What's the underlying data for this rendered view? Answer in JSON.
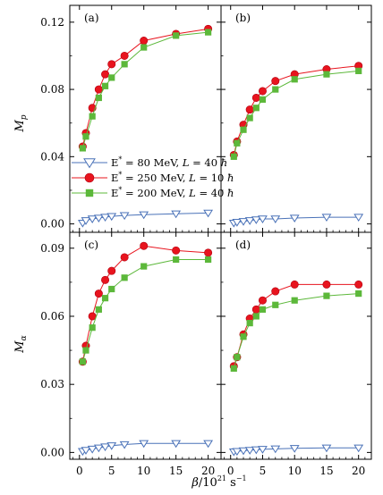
{
  "chart_data": [
    {
      "type": "line",
      "panel": "(a)",
      "ylabel_main": "M",
      "ylabel_sub": "p",
      "ylim": [
        -0.005,
        0.13
      ],
      "yticks": [
        0.0,
        0.04,
        0.08,
        0.12
      ],
      "yticklabels": [
        "0.00",
        "0.04",
        "0.08",
        "0.12"
      ],
      "x": [
        0.5,
        1,
        2,
        3,
        4,
        5,
        7,
        10,
        15,
        20
      ],
      "series": [
        {
          "name": "E* = 80 MeV, L = 40 ħ",
          "marker": "triangle",
          "color": "#4a72b8",
          "values": [
            0.0005,
            0.002,
            0.003,
            0.0035,
            0.004,
            0.0045,
            0.005,
            0.0055,
            0.006,
            0.0065
          ]
        },
        {
          "name": "E* = 250 MeV, L = 10 ħ",
          "marker": "circle",
          "color": "#e8141e",
          "values": [
            0.046,
            0.054,
            0.069,
            0.08,
            0.089,
            0.095,
            0.1,
            0.109,
            0.113,
            0.116
          ]
        },
        {
          "name": "E* = 200 MeV, L = 40 ħ",
          "marker": "square",
          "color": "#5cb83a",
          "values": [
            0.045,
            0.052,
            0.064,
            0.075,
            0.082,
            0.087,
            0.095,
            0.105,
            0.112,
            0.114
          ]
        }
      ]
    },
    {
      "type": "line",
      "panel": "(b)",
      "ylim": [
        -0.005,
        0.13
      ],
      "x": [
        0.5,
        1,
        2,
        3,
        4,
        5,
        7,
        10,
        15,
        20
      ],
      "series": [
        {
          "name": "E* = 80 MeV, L = 40 ħ",
          "marker": "triangle",
          "color": "#4a72b8",
          "values": [
            0.0005,
            0.001,
            0.0015,
            0.002,
            0.0025,
            0.003,
            0.003,
            0.0035,
            0.004,
            0.004
          ]
        },
        {
          "name": "E* = 250 MeV, L = 10 ħ",
          "marker": "circle",
          "color": "#e8141e",
          "values": [
            0.041,
            0.049,
            0.059,
            0.068,
            0.075,
            0.079,
            0.085,
            0.089,
            0.092,
            0.094
          ]
        },
        {
          "name": "E* = 200 MeV, L = 40 ħ",
          "marker": "square",
          "color": "#5cb83a",
          "values": [
            0.04,
            0.048,
            0.056,
            0.063,
            0.069,
            0.074,
            0.08,
            0.086,
            0.089,
            0.091
          ]
        }
      ]
    },
    {
      "type": "line",
      "panel": "(c)",
      "ylabel_main": "M",
      "ylabel_sub": "α",
      "ylim": [
        -0.003,
        0.097
      ],
      "yticks": [
        0.0,
        0.03,
        0.06,
        0.09
      ],
      "yticklabels": [
        "0.00",
        "0.03",
        "0.06",
        "0.09"
      ],
      "x": [
        0.5,
        1,
        2,
        3,
        4,
        5,
        7,
        10,
        15,
        20
      ],
      "series": [
        {
          "name": "E* = 80 MeV, L = 40 ħ",
          "marker": "triangle",
          "color": "#4a72b8",
          "values": [
            0.0005,
            0.001,
            0.0015,
            0.002,
            0.0025,
            0.003,
            0.0035,
            0.004,
            0.004,
            0.004
          ]
        },
        {
          "name": "E* = 250 MeV, L = 10 ħ",
          "marker": "circle",
          "color": "#e8141e",
          "values": [
            0.04,
            0.047,
            0.06,
            0.07,
            0.076,
            0.08,
            0.086,
            0.091,
            0.089,
            0.088
          ]
        },
        {
          "name": "E* = 200 MeV, L = 40 ħ",
          "marker": "square",
          "color": "#5cb83a",
          "values": [
            0.04,
            0.045,
            0.055,
            0.063,
            0.068,
            0.072,
            0.077,
            0.082,
            0.085,
            0.085
          ]
        }
      ]
    },
    {
      "type": "line",
      "panel": "(d)",
      "ylim": [
        -0.003,
        0.097
      ],
      "x": [
        0.5,
        1,
        2,
        3,
        4,
        5,
        7,
        10,
        15,
        20
      ],
      "series": [
        {
          "name": "E* = 80 MeV, L = 40 ħ",
          "marker": "triangle",
          "color": "#4a72b8",
          "values": [
            0.0003,
            0.0005,
            0.0008,
            0.001,
            0.0012,
            0.0014,
            0.0016,
            0.0018,
            0.002,
            0.002
          ]
        },
        {
          "name": "E* = 250 MeV, L = 10 ħ",
          "marker": "circle",
          "color": "#e8141e",
          "values": [
            0.038,
            0.042,
            0.052,
            0.059,
            0.063,
            0.067,
            0.071,
            0.074,
            0.074,
            0.074
          ]
        },
        {
          "name": "E* = 200 MeV, L = 40 ħ",
          "marker": "square",
          "color": "#5cb83a",
          "values": [
            0.037,
            0.042,
            0.051,
            0.057,
            0.06,
            0.063,
            0.065,
            0.067,
            0.069,
            0.07
          ]
        }
      ]
    }
  ],
  "xlabel_beta": "β",
  "xlabel_unit": "/10",
  "xlabel_exp": "21",
  "xlabel_s": " s",
  "xlabel_exp2": "−1",
  "xlim": [
    -1.5,
    22
  ],
  "xticks": [
    0,
    5,
    10,
    15,
    20
  ],
  "xticklabels": [
    "0",
    "5",
    "10",
    "15",
    "20"
  ],
  "legend": {
    "placement": "left, lower half of panel (a)",
    "entries": [
      {
        "marker": "triangle",
        "color": "#4a72b8",
        "prefix": "E",
        "sup": "*",
        "energy": " = 80 MeV, ",
        "lsym": "L",
        "ang": " = 40 ",
        "hbar": "ħ"
      },
      {
        "marker": "circle",
        "color": "#e8141e",
        "prefix": "E",
        "sup": "*",
        "energy": " = 250 MeV, ",
        "lsym": "L",
        "ang": " = 10 ",
        "hbar": "ħ"
      },
      {
        "marker": "square",
        "color": "#5cb83a",
        "prefix": "E",
        "sup": "*",
        "energy": " = 200 MeV, ",
        "lsym": "L",
        "ang": " = 40 ",
        "hbar": "ħ"
      }
    ]
  }
}
